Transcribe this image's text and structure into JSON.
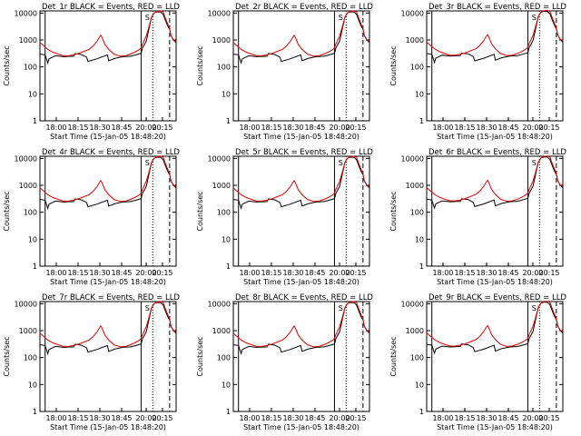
{
  "colors": {
    "events": "#000000",
    "lld": "#e00000",
    "background": "#ffffff",
    "axes": "#000000"
  },
  "common": {
    "ylabel": "Counts/sec",
    "xlabel": "Start Time (15-Jan-05 18:48:20)",
    "x_ticks": [
      "18:00",
      "18:15",
      "18:30",
      "18:45",
      "20:00",
      "20:15"
    ],
    "y_ticks": [
      "1",
      "10",
      "100",
      "1000",
      "10000"
    ],
    "ylim": [
      1,
      12000
    ],
    "yscale": "log"
  },
  "panels": [
    {
      "title": "Det_1r BLACK = Events, RED = LLD",
      "title_prefix": "Det_1r",
      "legend_text": " BLACK = Events, RED = LLD",
      "marker": "S"
    },
    {
      "title": "Det_2r BLACK = Events, RED = LLD",
      "title_prefix": "Det_2r",
      "legend_text": " BLACK = Events, RED = LLD",
      "marker": "S"
    },
    {
      "title": "Det_3r BLACK = Events, RED = LLD",
      "title_prefix": "Det_3r",
      "legend_text": " BLACK = Events, RED = LLD",
      "marker": "S"
    },
    {
      "title": "Det_4r BLACK = Events, RED = LLD",
      "title_prefix": "Det_4r",
      "legend_text": " BLACK = Events, RED = LLD",
      "marker": "S"
    },
    {
      "title": "Det_5r BLACK = Events, RED = LLD",
      "title_prefix": "Det_5r",
      "legend_text": " BLACK = Events, RED = LLD",
      "marker": "S"
    },
    {
      "title": "Det_6r BLACK = Events, RED = LLD",
      "title_prefix": "Det_6r",
      "legend_text": " BLACK = Events, RED = LLD",
      "marker": "S"
    },
    {
      "title": "Det_7r BLACK = Events, RED = LLD",
      "title_prefix": "Det_7r",
      "legend_text": " BLACK = Events, RED = LLD",
      "marker": "S"
    },
    {
      "title": "Det_8r BLACK = Events, RED = LLD",
      "title_prefix": "Det_8r",
      "legend_text": " BLACK = Events, RED = LLD",
      "marker": "S"
    },
    {
      "title": "Det_9r BLACK = Events, RED = LLD",
      "title_prefix": "Det_9r",
      "legend_text": " BLACK = Events, RED = LLD",
      "marker": "S"
    }
  ],
  "chart_data": {
    "type": "line",
    "layout": "3x3 small multiples",
    "x_unit": "minutes from 17:55",
    "xlim": [
      0,
      105
    ],
    "ylim": [
      1,
      12000
    ],
    "yscale": "log",
    "vertical_lines": [
      {
        "x": 4,
        "style": "solid"
      },
      {
        "x": 78,
        "style": "solid"
      },
      {
        "x": 87,
        "style": "dotted"
      },
      {
        "x": 100,
        "style": "dashed"
      }
    ],
    "series": [
      {
        "name": "Events",
        "color": "#000000",
        "points": [
          [
            0,
            300
          ],
          [
            4,
            280
          ],
          [
            6,
            140
          ],
          [
            7,
            200
          ],
          [
            12,
            260
          ],
          [
            18,
            240
          ],
          [
            26,
            250
          ],
          [
            27,
            310
          ],
          [
            32,
            290
          ],
          [
            36,
            230
          ],
          [
            37,
            160
          ],
          [
            44,
            200
          ],
          [
            52,
            280
          ],
          [
            53,
            170
          ],
          [
            58,
            210
          ],
          [
            64,
            240
          ],
          [
            70,
            250
          ],
          [
            75,
            290
          ],
          [
            78,
            320
          ],
          [
            79,
            500
          ],
          [
            82,
            900
          ],
          [
            84,
            2500
          ],
          [
            86,
            7000
          ],
          [
            88,
            10000
          ],
          [
            90,
            11000
          ],
          [
            93,
            11000
          ],
          [
            95,
            9000
          ],
          [
            97,
            5000
          ],
          [
            99,
            3000
          ],
          [
            100,
            2500
          ],
          [
            101,
            1500
          ],
          [
            103,
            1000
          ],
          [
            105,
            800
          ]
        ]
      },
      {
        "name": "LLD",
        "color": "#e00000",
        "points": [
          [
            0,
            800
          ],
          [
            3,
            600
          ],
          [
            6,
            450
          ],
          [
            10,
            350
          ],
          [
            14,
            300
          ],
          [
            18,
            260
          ],
          [
            22,
            260
          ],
          [
            26,
            280
          ],
          [
            30,
            320
          ],
          [
            34,
            380
          ],
          [
            38,
            450
          ],
          [
            41,
            600
          ],
          [
            44,
            900
          ],
          [
            46,
            1300
          ],
          [
            47,
            1500
          ],
          [
            48,
            1200
          ],
          [
            50,
            700
          ],
          [
            53,
            450
          ],
          [
            57,
            300
          ],
          [
            62,
            250
          ],
          [
            66,
            260
          ],
          [
            70,
            300
          ],
          [
            73,
            350
          ],
          [
            76,
            420
          ],
          [
            78,
            500
          ],
          [
            79,
            700
          ],
          [
            82,
            1400
          ],
          [
            84,
            3000
          ],
          [
            86,
            7000
          ],
          [
            88,
            10000
          ],
          [
            90,
            11500
          ],
          [
            93,
            12000
          ],
          [
            95,
            11000
          ],
          [
            97,
            6000
          ],
          [
            99,
            3500
          ],
          [
            100,
            2500
          ],
          [
            101,
            1500
          ],
          [
            103,
            1000
          ],
          [
            105,
            900
          ]
        ]
      }
    ]
  }
}
